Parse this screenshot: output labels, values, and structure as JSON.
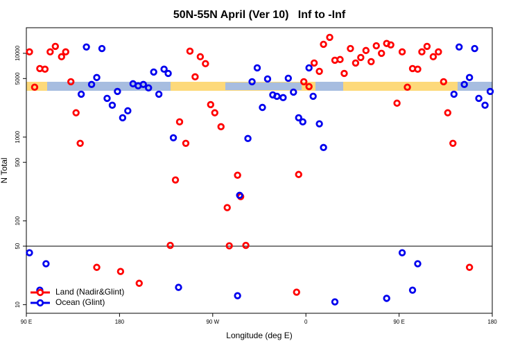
{
  "chart_data": {
    "type": "scatter",
    "title": "50N-55N April (Ver 10)   Inf to -Inf",
    "xlabel": "Longitude (deg E)",
    "ylabel": "N Total",
    "xlim": [
      90,
      540
    ],
    "xticks": [
      {
        "value": 90,
        "label": "90 E"
      },
      180,
      {
        "value": 270,
        "label": "90 W"
      },
      {
        "value": 360,
        "label": "0"
      },
      {
        "value": 450,
        "label": "90 E"
      },
      {
        "value": 540,
        "label": "180"
      }
    ],
    "ylim": [
      7.9,
      20200
    ],
    "ylog": true,
    "yticks": [
      10,
      50,
      100,
      500,
      1000,
      5000,
      10000
    ],
    "hline": 50,
    "legend": "lower-left",
    "series": [
      {
        "name": "Land (Nadir&Glint)",
        "color": "#ff0000",
        "x": [
          93,
          98,
          103,
          108,
          113,
          118,
          124,
          128,
          133,
          138,
          142,
          158,
          181,
          199,
          229,
          234,
          238,
          244,
          248,
          253,
          258,
          263,
          268,
          272,
          278,
          284,
          286,
          294,
          297,
          302,
          351,
          353,
          358,
          363,
          368,
          373,
          377,
          383,
          388,
          393,
          397,
          403,
          408,
          413,
          418,
          423,
          428,
          433,
          438,
          442,
          448,
          453,
          458,
          463,
          468,
          472,
          477,
          483,
          488,
          493,
          497,
          502,
          518
        ],
        "values": [
          10400,
          3940,
          6580,
          6460,
          10400,
          12100,
          9100,
          10400,
          4580,
          1950,
          843,
          27.9,
          24.9,
          18.0,
          51,
          308,
          1520,
          843,
          10600,
          5240,
          9100,
          7520,
          2440,
          1950,
          1330,
          144,
          50.4,
          351,
          195,
          51,
          14.1,
          358,
          4580,
          4010,
          7660,
          6090,
          12800,
          15500,
          8260,
          8430,
          5750,
          11400,
          7660,
          8910,
          10800,
          7950,
          12300,
          10000,
          13100,
          12600,
          2540,
          10400,
          3940,
          6580,
          6460,
          10400,
          12100,
          9100,
          10400,
          4580,
          1950,
          843,
          27.9
        ]
      },
      {
        "name": "Ocean (Glint)",
        "color": "#0000ee",
        "x": [
          93,
          103,
          109,
          143,
          148,
          153,
          158,
          163,
          168,
          173,
          178,
          183,
          188,
          193,
          198,
          203,
          208,
          213,
          218,
          223,
          227,
          232,
          237,
          294,
          296,
          304,
          308,
          313,
          318,
          323,
          328,
          332,
          338,
          343,
          348,
          353,
          357,
          363,
          367,
          373,
          377,
          388,
          438,
          453,
          463,
          468,
          503,
          508,
          513,
          518,
          523,
          527,
          533,
          538
        ],
        "values": [
          41.7,
          14.9,
          30.8,
          3250,
          11900,
          4250,
          5140,
          11400,
          2900,
          2400,
          3510,
          1700,
          2060,
          4330,
          4090,
          4250,
          3870,
          5980,
          3250,
          6460,
          5750,
          982,
          16.1,
          12.8,
          202,
          962,
          4580,
          6700,
          2260,
          4940,
          3190,
          3070,
          2960,
          5040,
          3440,
          1700,
          1520,
          6700,
          3070,
          1440,
          751,
          10.8,
          11.9,
          41.7,
          14.9,
          30.8,
          3250,
          11900,
          4250,
          5140,
          11400,
          2900,
          2400,
          3510
        ]
      }
    ]
  }
}
